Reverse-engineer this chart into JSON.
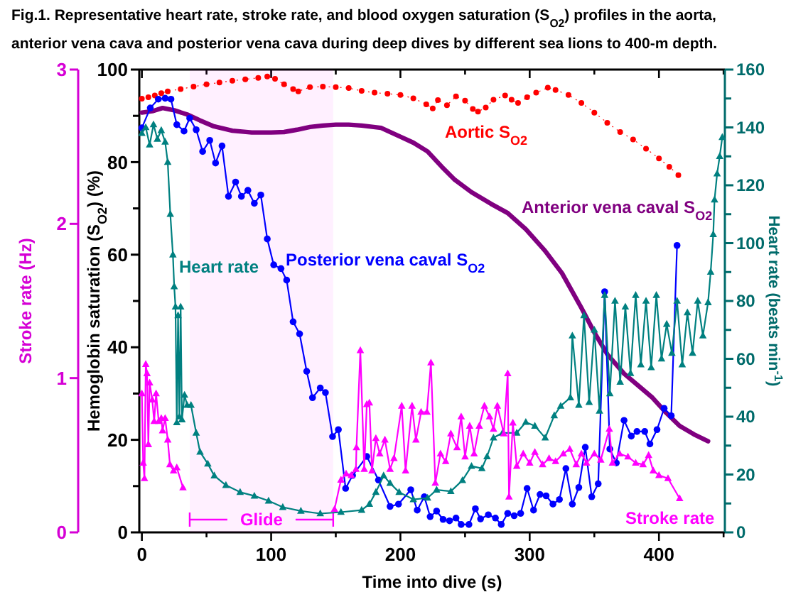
{
  "chart_data": {
    "type": "line",
    "title": "Fig.1. Representative heart rate, stroke rate, and blood oxygen saturation (S$_{O2}$) profiles in the aorta, anterior vena cava and posterior vena cava during deep dives by different sea lions to 400-m depth.",
    "xlabel": "Time into dive (s)",
    "ylabel": "Hemoglobin saturation (S$_{O2}$) (%)",
    "y2label": "Heart rate (beats min$^{-1}$)",
    "y3label": "Stroke rate (Hz)",
    "xlim": [
      -2,
      451
    ],
    "xticks": [
      0,
      {
        "value": 50,
        "label": null
      },
      100,
      {
        "value": 150,
        "label": null
      },
      200,
      {
        "value": 250,
        "label": null
      },
      300,
      {
        "value": 350,
        "label": null
      },
      400,
      {
        "value": 450,
        "label": null
      }
    ],
    "ylim": [
      0,
      100
    ],
    "yticks": [
      0,
      {
        "value": 10,
        "label": null
      },
      20,
      {
        "value": 30,
        "label": null
      },
      40,
      {
        "value": 50,
        "label": null
      },
      60,
      {
        "value": 70,
        "label": null
      },
      80,
      {
        "value": 90,
        "label": null
      },
      100
    ],
    "y2lim": [
      0,
      160
    ],
    "y2ticks": [
      0,
      {
        "value": 10,
        "label": null
      },
      20,
      {
        "value": 30,
        "label": null
      },
      40,
      {
        "value": 50,
        "label": null
      },
      60,
      {
        "value": 70,
        "label": null
      },
      80,
      {
        "value": 90,
        "label": null
      },
      100,
      {
        "value": 110,
        "label": null
      },
      120,
      {
        "value": 130,
        "label": null
      },
      140,
      {
        "value": 150,
        "label": null
      },
      160
    ],
    "y3lim": [
      0,
      3
    ],
    "y3ticks": [
      0,
      1,
      2,
      3
    ],
    "grid": false,
    "bands": [
      {
        "axis": "x",
        "from": 37,
        "to": 148,
        "label": "Glide",
        "color": "#ff00ff"
      }
    ],
    "series": [
      {
        "name": "Aortic S$_{O2}$",
        "color": "#ff0000",
        "marker": "circle",
        "line_style": "dotted",
        "x": [
          0,
          5,
          10,
          15,
          20,
          30,
          40,
          50,
          60,
          70,
          80,
          90,
          97,
          103,
          110,
          117,
          121,
          130,
          140,
          150,
          160,
          170,
          180,
          190,
          200,
          210,
          220,
          225,
          229,
          236,
          243,
          250,
          256,
          260,
          266,
          272,
          281,
          286,
          291,
          298,
          305,
          314,
          320,
          330,
          340,
          350,
          360,
          370,
          380,
          390,
          400,
          408,
          415
        ],
        "values": [
          93.7,
          94.0,
          94.4,
          94.9,
          95.3,
          95.8,
          96.3,
          96.8,
          97.2,
          97.6,
          97.9,
          98.2,
          98.5,
          98.0,
          96.8,
          95.8,
          95.3,
          96.2,
          96.3,
          96.2,
          96.0,
          95.4,
          95.0,
          94.8,
          94.5,
          93.8,
          92.5,
          91.6,
          93.4,
          92.3,
          94.2,
          93.3,
          91.5,
          90.9,
          91.8,
          93.5,
          94.4,
          93.5,
          92.8,
          94.0,
          95.0,
          96.1,
          95.6,
          94.5,
          92.8,
          90.7,
          88.5,
          86.5,
          84.9,
          82.9,
          80.8,
          79.0,
          77.2
        ]
      },
      {
        "name": "Anterior vena caval S$_{O2}$",
        "color": "#800080",
        "marker": "none",
        "line_style": "solid",
        "x": [
          0,
          8,
          16,
          25,
          35,
          45,
          55,
          70,
          85,
          100,
          110,
          120,
          130,
          140,
          150,
          160,
          170,
          185,
          200,
          210,
          221,
          232,
          242,
          255,
          270,
          283,
          297,
          312,
          325,
          340,
          350,
          360,
          373,
          384,
          395,
          405,
          416,
          427,
          438
        ],
        "values": [
          90.7,
          91.0,
          91.7,
          91.2,
          90.3,
          89.0,
          87.8,
          86.8,
          86.4,
          86.4,
          86.5,
          87.0,
          87.6,
          87.9,
          88.1,
          88.1,
          87.9,
          87.4,
          85.5,
          84.2,
          82.3,
          79.0,
          76.2,
          73.5,
          71.0,
          69.0,
          65.5,
          60.8,
          56.0,
          48.5,
          43.2,
          38.5,
          34.3,
          31.7,
          29.1,
          26.0,
          23.0,
          21.2,
          19.7
        ]
      },
      {
        "name": "Posterior vena caval S$_{O2}$",
        "color": "#0000ff",
        "marker": "circle",
        "line_style": "solid",
        "x": [
          0,
          6.5,
          12.7,
          18,
          22.5,
          27,
          32.6,
          37,
          42,
          47,
          52.5,
          57,
          62,
          67,
          72.5,
          77,
          82,
          87,
          92,
          97,
          102,
          107.6,
          112,
          117,
          122,
          127.5,
          132,
          138,
          142,
          147.5,
          152,
          157.6,
          163,
          174,
          183,
          192,
          198.5,
          208,
          213,
          218.5,
          223,
          228,
          233,
          238,
          243,
          247,
          253,
          258,
          262,
          268,
          273.5,
          278,
          283,
          288,
          293,
          298,
          303,
          308,
          312.7,
          318,
          323,
          328,
          333,
          338,
          343,
          348,
          353,
          358,
          362,
          367,
          373,
          378.6,
          383,
          389,
          393,
          398.5,
          404,
          409.5,
          414
        ],
        "values": [
          87.4,
          91.7,
          93.6,
          93.8,
          93.6,
          88.1,
          86.7,
          89.5,
          87,
          82.3,
          84.7,
          79.8,
          83.5,
          72.6,
          75.7,
          72.6,
          73.9,
          71.1,
          72.9,
          63.4,
          57.8,
          57,
          54.5,
          45.5,
          42.9,
          34.8,
          29.1,
          31.2,
          30.2,
          20.7,
          22.2,
          9.5,
          12.3,
          16.4,
          11.3,
          5.6,
          6.1,
          9.2,
          4.8,
          7.7,
          3.4,
          4.6,
          2.8,
          2.5,
          3.1,
          1.7,
          1.7,
          5.1,
          2.9,
          3.8,
          3.1,
          1.7,
          4.1,
          3.6,
          4.1,
          9.5,
          4.8,
          8.2,
          7.9,
          6.1,
          7.1,
          13.8,
          6.1,
          9.7,
          18.4,
          7.7,
          10.5,
          52,
          18,
          15,
          24.2,
          20.8,
          21.8,
          21.8,
          19.1,
          22.2,
          26.8,
          25.2,
          62
        ]
      },
      {
        "name": "Heart rate",
        "color": "#008080",
        "marker": "triangle",
        "line_style": "solid",
        "axis": "y2",
        "x": [
          0,
          3,
          6,
          9,
          12,
          15,
          18,
          20,
          22,
          24,
          25,
          26,
          27,
          28,
          29,
          30,
          31,
          33,
          35,
          38,
          42,
          45,
          51,
          56,
          65,
          76,
          87,
          98,
          109,
          123,
          138,
          154,
          170,
          176,
          181,
          187,
          192,
          199,
          210,
          221,
          228,
          239,
          248,
          255,
          263,
          267,
          272,
          279,
          290,
          297,
          304,
          312,
          319,
          324,
          331.5,
          333,
          338,
          342,
          346,
          350,
          354,
          358,
          362,
          366,
          370,
          374,
          378,
          382,
          386,
          390,
          394,
          398,
          402,
          406,
          410,
          414,
          418,
          422,
          426,
          430,
          434,
          438,
          440,
          442,
          443,
          445,
          447,
          449
        ],
        "values": [
          138,
          140,
          134,
          141,
          136,
          139,
          135,
          128,
          110,
          96,
          85,
          78,
          38,
          75,
          40,
          78,
          39,
          47.5,
          44,
          44,
          34.4,
          27.8,
          23.7,
          19.6,
          16.3,
          13.9,
          12.6,
          10.9,
          8.7,
          7.4,
          6.5,
          7,
          7.7,
          9.8,
          13.9,
          19.6,
          17,
          13.9,
          11.4,
          11.9,
          14.7,
          14.2,
          18,
          22.9,
          22.1,
          26.2,
          32.7,
          34.4,
          34.4,
          38.1,
          36.8,
          32.7,
          40.4,
          43.7,
          46.6,
          68,
          44,
          75,
          45,
          70,
          42,
          82,
          48,
          80,
          52,
          78,
          55,
          82,
          58,
          80,
          57,
          82,
          60,
          72,
          62,
          80,
          58,
          76,
          62,
          80,
          68,
          79.5,
          90,
          103,
          115,
          124,
          130,
          136.6
        ]
      },
      {
        "name": "Stroke rate",
        "color": "#ff00ff",
        "marker": "triangle",
        "line_style": "solid",
        "axis": "y3",
        "x": [
          0,
          1,
          2,
          3,
          4,
          5,
          6,
          8,
          9.5,
          11,
          13,
          15,
          16,
          18,
          20,
          21.7,
          24.5,
          27,
          31.8,
          null,
          149,
          154,
          158,
          162,
          165.6,
          166,
          169,
          172,
          174,
          176,
          178,
          181,
          184,
          188,
          192,
          195,
          201,
          204,
          209,
          212,
          216,
          220.5,
          223.6,
          227,
          231,
          235,
          239,
          243.8,
          247,
          250,
          253.6,
          257,
          261,
          265,
          269,
          272,
          275,
          280,
          283,
          284,
          287,
          290,
          295,
          300,
          304,
          310,
          315,
          320,
          326,
          331,
          336,
          340,
          344,
          350,
          355,
          361.6,
          364,
          369.6,
          376,
          382,
          387.7,
          392,
          395.6,
          400,
          407,
          416
        ],
        "values": [
          0.9,
          0.45,
          0.35,
          1.09,
          1.03,
          0.57,
          0.97,
          0.86,
          0.72,
          0.9,
          0.72,
          0.74,
          0.66,
          0.74,
          0.6,
          0.44,
          0.4,
          0.42,
          0.29,
          null,
          0.15,
          0.34,
          0.38,
          0.37,
          0.41,
          0.55,
          1.18,
          0.41,
          0.83,
          0.84,
          0.4,
          0.61,
          0.51,
          0.6,
          0.41,
          0.48,
          0.82,
          0.4,
          0.82,
          0.6,
          0.78,
          0.78,
          1.1,
          0.32,
          0.51,
          0.46,
          0.64,
          0.55,
          0.75,
          0.49,
          0.69,
          0.51,
          0.69,
          0.82,
          0.75,
          0.67,
          0.82,
          0.64,
          1.03,
          0.23,
          0.71,
          0.43,
          0.51,
          0.45,
          0.52,
          0.44,
          0.48,
          0.46,
          0.51,
          0.54,
          0.44,
          0.51,
          0.45,
          0.51,
          0.47,
          0.67,
          0.45,
          0.51,
          0.49,
          0.45,
          0.44,
          0.5,
          0.4,
          0.37,
          0.35,
          0.22
        ]
      }
    ]
  }
}
